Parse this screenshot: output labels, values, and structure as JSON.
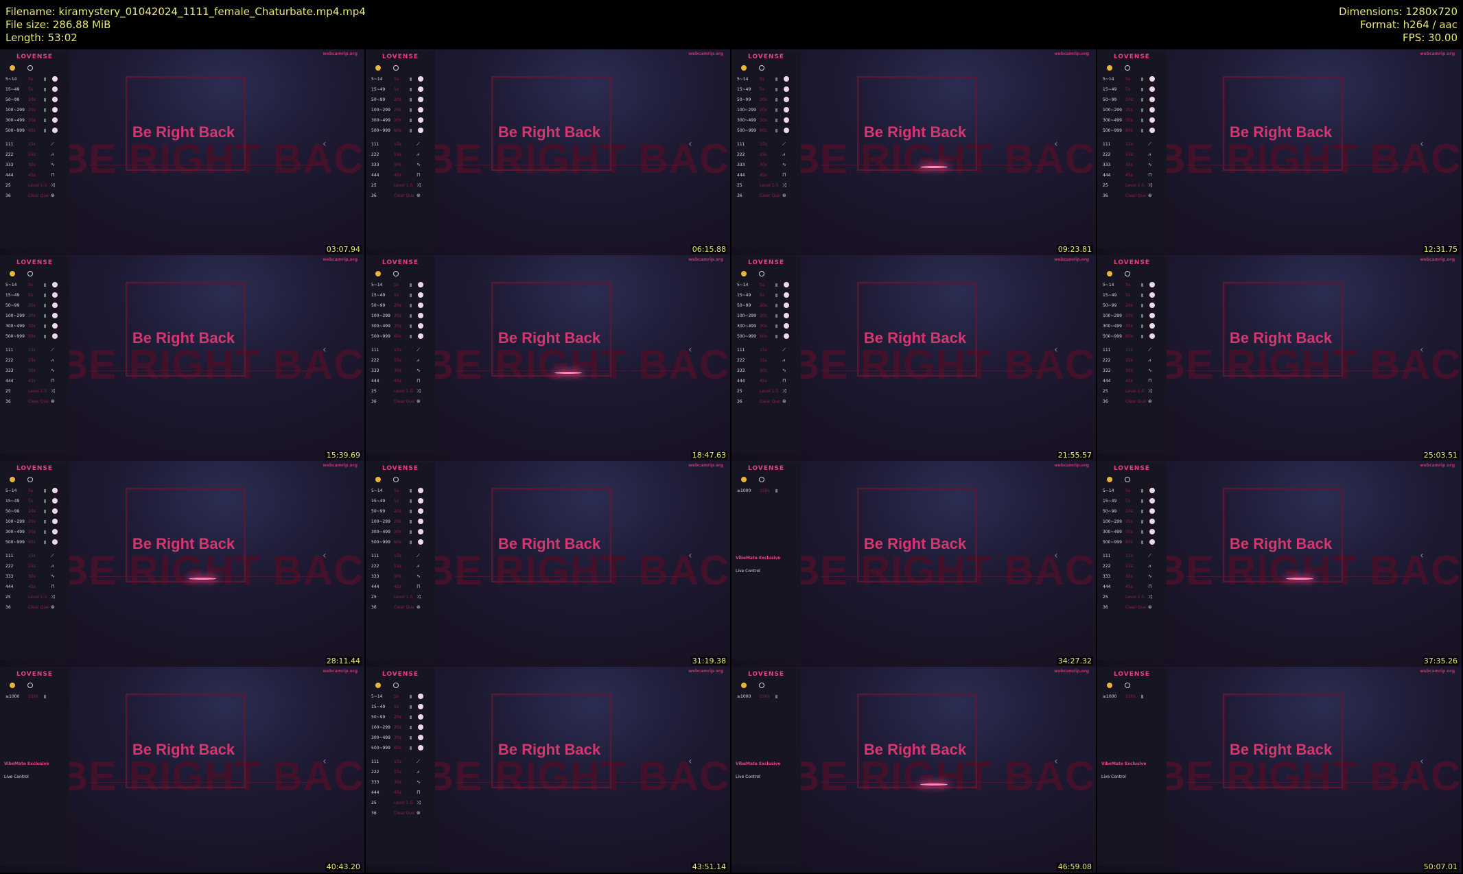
{
  "header": {
    "filename": "Filename: kiramystery_01042024_1111_female_Chaturbate.mp4.mp4",
    "filesize": "File size: 286.88 MiB",
    "length": "Length: 53:02",
    "dimensions": "Dimensions: 1280x720",
    "format": "Format: h264 / aac",
    "fps": "FPS: 30.00"
  },
  "overlay": {
    "brb": "Be Right Back",
    "brb_big": "BE RIGHT BACK",
    "logo": "LOVENSE",
    "site": "webcamrip.org",
    "vibemate": "VibeMate Exclusive",
    "live_control": "Live Control"
  },
  "tip_rows": [
    {
      "level": "5~14",
      "seconds": "5s"
    },
    {
      "level": "15~49",
      "seconds": "5s"
    },
    {
      "level": "50~99",
      "seconds": "20s"
    },
    {
      "level": "100~299",
      "seconds": "20s"
    },
    {
      "level": "300~499",
      "seconds": "30s"
    },
    {
      "level": "500~999",
      "seconds": "60s"
    }
  ],
  "pattern_rows": [
    {
      "level": "111",
      "seconds": "15s"
    },
    {
      "level": "222",
      "seconds": "15s"
    },
    {
      "level": "333",
      "seconds": "30s"
    },
    {
      "level": "444",
      "seconds": "45s"
    },
    {
      "level": "25",
      "seconds": "Level 1-5"
    },
    {
      "level": "36",
      "seconds": "Clear Que"
    }
  ],
  "single_row": {
    "level": "≥1000",
    "seconds": "150s"
  },
  "thumbnails": [
    {
      "time": "03:07.94",
      "variant": "full"
    },
    {
      "time": "06:15.88",
      "variant": "full"
    },
    {
      "time": "09:23.81",
      "variant": "full"
    },
    {
      "time": "12:31.75",
      "variant": "full"
    },
    {
      "time": "15:39.69",
      "variant": "full"
    },
    {
      "time": "18:47.63",
      "variant": "full"
    },
    {
      "time": "21:55.57",
      "variant": "full"
    },
    {
      "time": "25:03.51",
      "variant": "full"
    },
    {
      "time": "28:11.44",
      "variant": "full"
    },
    {
      "time": "31:19.38",
      "variant": "full"
    },
    {
      "time": "34:27.32",
      "variant": "vibemate"
    },
    {
      "time": "37:35.26",
      "variant": "full"
    },
    {
      "time": "40:43.20",
      "variant": "vibemate"
    },
    {
      "time": "43:51.14",
      "variant": "full"
    },
    {
      "time": "46:59.08",
      "variant": "vibemate"
    },
    {
      "time": "50:07.01",
      "variant": "vibemate"
    }
  ]
}
